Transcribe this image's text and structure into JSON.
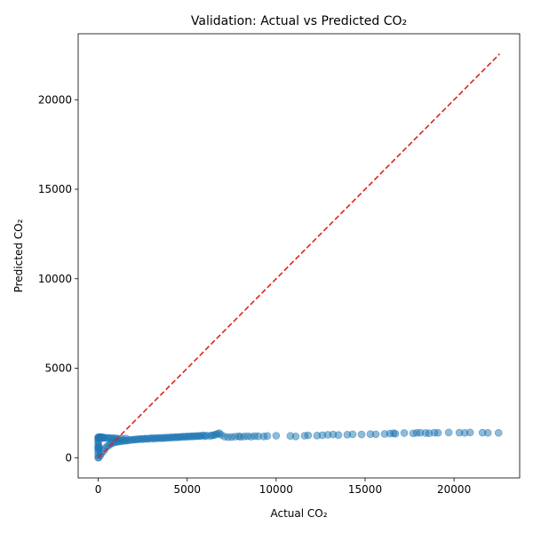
{
  "chart_data": {
    "type": "scatter",
    "title": "Validation: Actual vs Predicted CO₂",
    "xlabel": "Actual CO₂",
    "ylabel": "Predicted CO₂",
    "xlim": [
      -1128,
      23688
    ],
    "ylim": [
      -1128,
      23688
    ],
    "xticks": [
      0,
      5000,
      10000,
      15000,
      20000
    ],
    "yticks": [
      0,
      5000,
      10000,
      15000,
      20000
    ],
    "grid": false,
    "legend": "none",
    "point_color": "#1f77b4",
    "point_alpha": 0.5,
    "reference_line": {
      "from": [
        0,
        0
      ],
      "to": [
        22560,
        22560
      ],
      "color": "#e02020",
      "style": "dashed"
    },
    "series": [
      {
        "values": [
          [
            0,
            0
          ],
          [
            0,
            150
          ],
          [
            0,
            300
          ],
          [
            0,
            450
          ],
          [
            0,
            550
          ],
          [
            0,
            600
          ],
          [
            0,
            700
          ],
          [
            0,
            850
          ],
          [
            0,
            950
          ],
          [
            0,
            1050
          ],
          [
            0,
            1100
          ],
          [
            0,
            1150
          ],
          [
            30,
            20
          ],
          [
            40,
            520
          ],
          [
            50,
            1120
          ],
          [
            60,
            600
          ],
          [
            80,
            1140
          ],
          [
            100,
            1160
          ],
          [
            120,
            140
          ],
          [
            150,
            1120
          ],
          [
            180,
            250
          ],
          [
            200,
            1150
          ],
          [
            250,
            1100
          ],
          [
            300,
            380
          ],
          [
            300,
            1130
          ],
          [
            350,
            1120
          ],
          [
            400,
            520
          ],
          [
            450,
            1100
          ],
          [
            500,
            640
          ],
          [
            550,
            1110
          ],
          [
            600,
            700
          ],
          [
            650,
            1100
          ],
          [
            700,
            780
          ],
          [
            750,
            1080
          ],
          [
            800,
            820
          ],
          [
            850,
            1090
          ],
          [
            900,
            860
          ],
          [
            950,
            1080
          ],
          [
            1000,
            880
          ],
          [
            1050,
            1070
          ],
          [
            1100,
            900
          ],
          [
            1150,
            1060
          ],
          [
            1200,
            910
          ],
          [
            1300,
            930
          ],
          [
            1350,
            1060
          ],
          [
            1400,
            940
          ],
          [
            1500,
            950
          ],
          [
            1550,
            1080
          ],
          [
            1600,
            960
          ],
          [
            1700,
            980
          ],
          [
            1800,
            990
          ],
          [
            1900,
            1000
          ],
          [
            2000,
            1010
          ],
          [
            2100,
            1020
          ],
          [
            2200,
            1030
          ],
          [
            2300,
            1040
          ],
          [
            2400,
            1050
          ],
          [
            2500,
            1040
          ],
          [
            2600,
            1060
          ],
          [
            2700,
            1070
          ],
          [
            2800,
            1050
          ],
          [
            2900,
            1080
          ],
          [
            3000,
            1090
          ],
          [
            3100,
            1070
          ],
          [
            3200,
            1100
          ],
          [
            3300,
            1080
          ],
          [
            3400,
            1100
          ],
          [
            3500,
            1110
          ],
          [
            3600,
            1090
          ],
          [
            3700,
            1120
          ],
          [
            3800,
            1110
          ],
          [
            3900,
            1130
          ],
          [
            4000,
            1120
          ],
          [
            4100,
            1140
          ],
          [
            4200,
            1130
          ],
          [
            4300,
            1150
          ],
          [
            4400,
            1140
          ],
          [
            4500,
            1160
          ],
          [
            4600,
            1150
          ],
          [
            4700,
            1170
          ],
          [
            4800,
            1180
          ],
          [
            4900,
            1170
          ],
          [
            5000,
            1190
          ],
          [
            5100,
            1180
          ],
          [
            5200,
            1200
          ],
          [
            5300,
            1190
          ],
          [
            5400,
            1210
          ],
          [
            5500,
            1200
          ],
          [
            5600,
            1220
          ],
          [
            5700,
            1210
          ],
          [
            5800,
            1230
          ],
          [
            5900,
            1250
          ],
          [
            6000,
            1200
          ],
          [
            6100,
            1240
          ],
          [
            6300,
            1220
          ],
          [
            6400,
            1260
          ],
          [
            6500,
            1250
          ],
          [
            6600,
            1300
          ],
          [
            6700,
            1330
          ],
          [
            6800,
            1370
          ],
          [
            6900,
            1280
          ],
          [
            7100,
            1180
          ],
          [
            7300,
            1150
          ],
          [
            7500,
            1160
          ],
          [
            7700,
            1180
          ],
          [
            7900,
            1200
          ],
          [
            8000,
            1170
          ],
          [
            8200,
            1190
          ],
          [
            8400,
            1200
          ],
          [
            8600,
            1180
          ],
          [
            8800,
            1210
          ],
          [
            9000,
            1200
          ],
          [
            9300,
            1190
          ],
          [
            9500,
            1220
          ],
          [
            10000,
            1230
          ],
          [
            10800,
            1220
          ],
          [
            11100,
            1190
          ],
          [
            11600,
            1230
          ],
          [
            11800,
            1250
          ],
          [
            12300,
            1240
          ],
          [
            12600,
            1260
          ],
          [
            12900,
            1280
          ],
          [
            13200,
            1300
          ],
          [
            13500,
            1270
          ],
          [
            14000,
            1290
          ],
          [
            14300,
            1310
          ],
          [
            14800,
            1300
          ],
          [
            15300,
            1320
          ],
          [
            15600,
            1310
          ],
          [
            16100,
            1330
          ],
          [
            16400,
            1350
          ],
          [
            16600,
            1370
          ],
          [
            16700,
            1340
          ],
          [
            17200,
            1380
          ],
          [
            17700,
            1360
          ],
          [
            17900,
            1390
          ],
          [
            18100,
            1400
          ],
          [
            18400,
            1380
          ],
          [
            18600,
            1370
          ],
          [
            18900,
            1400
          ],
          [
            19100,
            1390
          ],
          [
            19700,
            1410
          ],
          [
            20300,
            1400
          ],
          [
            20600,
            1390
          ],
          [
            20900,
            1410
          ],
          [
            21600,
            1400
          ],
          [
            21900,
            1390
          ],
          [
            22500,
            1390
          ]
        ]
      }
    ]
  }
}
